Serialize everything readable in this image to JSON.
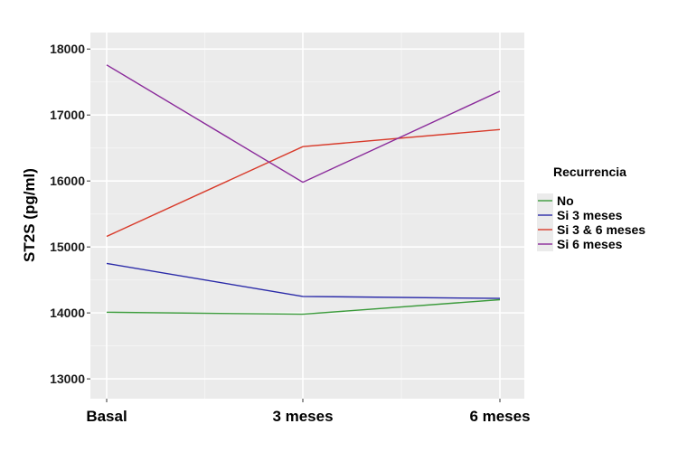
{
  "chart_data": {
    "type": "line",
    "categories": [
      "Basal",
      "3 meses",
      "6 meses"
    ],
    "ylabel": "ST2S (pg/ml)",
    "ylim": [
      12700,
      18250
    ],
    "yticks": [
      13000,
      14000,
      15000,
      16000,
      17000,
      18000
    ],
    "grid": true,
    "legend": {
      "title": "Recurrencia",
      "position": "right"
    },
    "series": [
      {
        "name": "No",
        "color": "#3a9a3a",
        "values": [
          14010,
          13980,
          14200
        ]
      },
      {
        "name": "Si 3 meses",
        "color": "#2a2aa8",
        "values": [
          14750,
          14250,
          14220
        ]
      },
      {
        "name": "Si 3 & 6 meses",
        "color": "#d83a2a",
        "values": [
          15160,
          16520,
          16780
        ]
      },
      {
        "name": "Si 6 meses",
        "color": "#8a2a9a",
        "values": [
          17760,
          15980,
          17360
        ]
      }
    ]
  }
}
